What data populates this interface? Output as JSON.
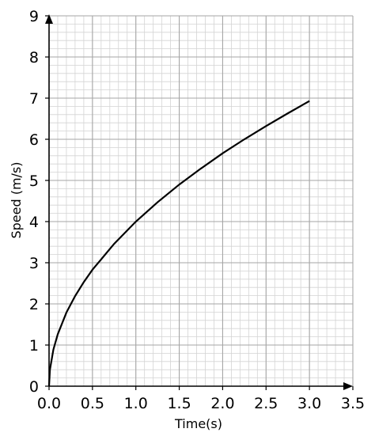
{
  "chart_data": {
    "type": "line",
    "title": "",
    "xlabel": "Time(s)",
    "ylabel": "Speed (m/s)",
    "xlim": [
      0,
      3.5
    ],
    "ylim": [
      0,
      9
    ],
    "x_ticks": [
      "0.0",
      "0.5",
      "1.0",
      "1.5",
      "2.0",
      "2.5",
      "3.0",
      "3.5"
    ],
    "y_ticks": [
      "0",
      "1",
      "2",
      "3",
      "4",
      "5",
      "6",
      "7",
      "8",
      "9"
    ],
    "grid": true,
    "series": [
      {
        "x": [
          0,
          0.01,
          0.05,
          0.1,
          0.2,
          0.3,
          0.4,
          0.5,
          0.75,
          1.0,
          1.25,
          1.5,
          1.75,
          2.0,
          2.25,
          2.5,
          2.75,
          3.0
        ],
        "y": [
          0,
          0.4,
          0.89,
          1.26,
          1.79,
          2.19,
          2.53,
          2.83,
          3.46,
          4.0,
          4.47,
          4.9,
          5.29,
          5.66,
          6.0,
          6.32,
          6.63,
          6.93
        ],
        "color": "#000000"
      }
    ]
  }
}
